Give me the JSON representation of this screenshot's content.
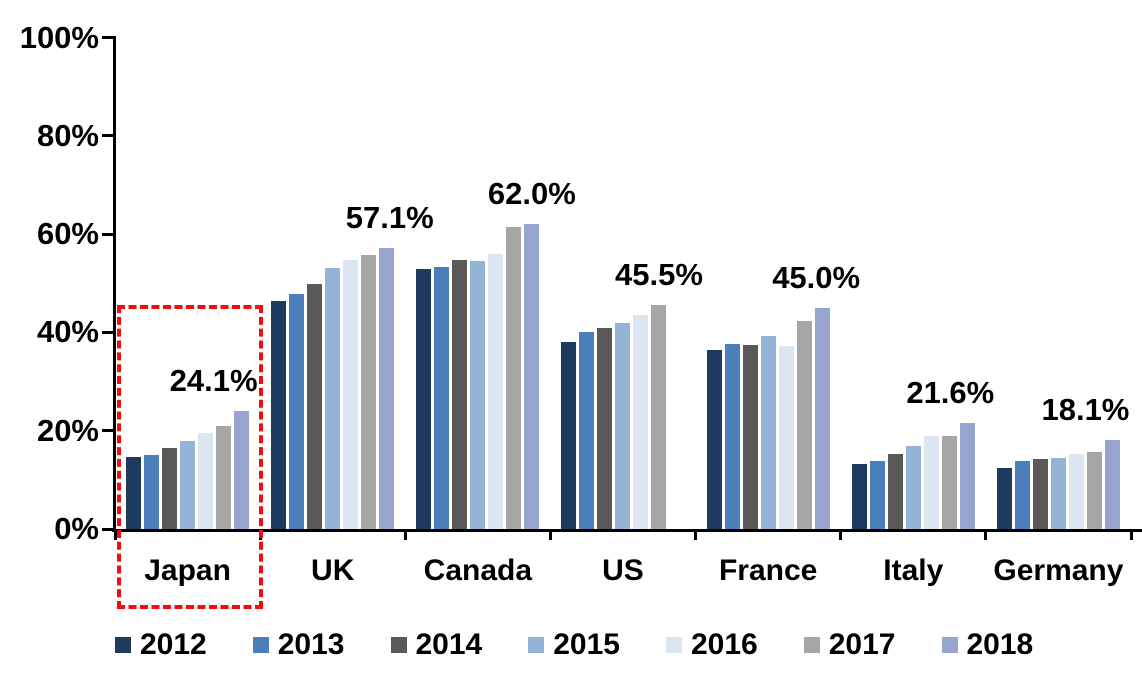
{
  "chart_data": {
    "type": "bar",
    "title": "",
    "xlabel": "",
    "ylabel": "",
    "categories": [
      "Japan",
      "UK",
      "Canada",
      "US",
      "France",
      "Italy",
      "Germany"
    ],
    "series": [
      {
        "name": "2012",
        "color": "#1E3A5F",
        "values": [
          14.7,
          46.3,
          52.9,
          38.0,
          36.4,
          13.2,
          12.4
        ]
      },
      {
        "name": "2013",
        "color": "#4C7EBB",
        "values": [
          15.0,
          47.8,
          53.3,
          40.0,
          37.7,
          13.9,
          13.8
        ]
      },
      {
        "name": "2014",
        "color": "#595959",
        "values": [
          16.4,
          49.8,
          54.8,
          41.0,
          37.5,
          15.2,
          14.2
        ]
      },
      {
        "name": "2015",
        "color": "#95B3D7",
        "values": [
          18.0,
          53.1,
          54.5,
          42.0,
          39.2,
          16.8,
          14.5
        ]
      },
      {
        "name": "2016",
        "color": "#DCE6F2",
        "values": [
          19.6,
          54.7,
          56.0,
          43.5,
          37.3,
          18.9,
          15.3
        ]
      },
      {
        "name": "2017",
        "color": "#A6A6A6",
        "values": [
          21.0,
          55.8,
          61.5,
          45.5,
          42.3,
          19.0,
          15.7
        ]
      },
      {
        "name": "2018",
        "color": "#97A4CE",
        "values": [
          24.1,
          57.1,
          62.0,
          null,
          45.0,
          21.6,
          18.1
        ]
      }
    ],
    "data_labels": [
      "24.1%",
      "57.1%",
      "62.0%",
      "45.5%",
      "45.0%",
      "21.6%",
      "18.1%"
    ],
    "yticks": [
      {
        "value": 0,
        "label": "0%"
      },
      {
        "value": 20,
        "label": "20%"
      },
      {
        "value": 40,
        "label": "40%"
      },
      {
        "value": 60,
        "label": "60%"
      },
      {
        "value": 80,
        "label": "80%"
      },
      {
        "value": 100,
        "label": "100%"
      }
    ],
    "ylim": [
      0,
      100
    ],
    "grid": false,
    "legend_position": "bottom",
    "highlight": {
      "category": "Japan",
      "shape": "dashed-rectangle",
      "color": "#F40B0B"
    }
  }
}
